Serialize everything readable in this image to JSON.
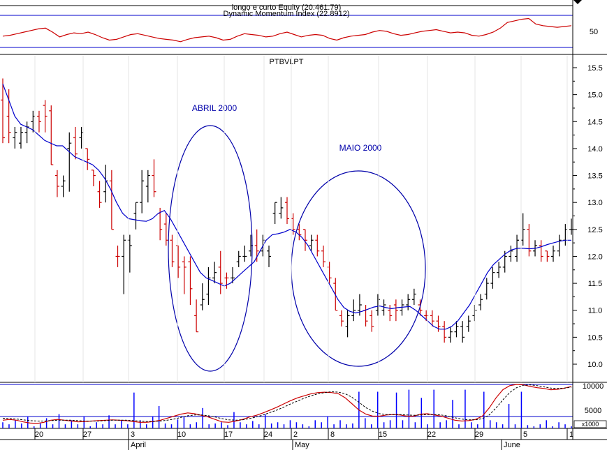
{
  "top_panel": {
    "title_line1": "longo e curto Equity (20.461.79)",
    "title_line2": "Dynamic Momentum Index (22.8912)",
    "tick_label": "50"
  },
  "price_panel": {
    "symbol": "PTBVLPT",
    "annotation_april": "ABRIL 2000",
    "annotation_may": "MAIO 2000",
    "tick_labels": [
      "15.5",
      "15.0",
      "14.5",
      "14.0",
      "13.5",
      "13.0",
      "12.5",
      "12.0",
      "11.5",
      "11.0",
      "10.5",
      "10.0"
    ]
  },
  "volume_panel": {
    "tick_labels": [
      "10000",
      "5000"
    ],
    "multiplier": "x1000"
  },
  "x_axis": {
    "day_labels": [
      "20",
      "27",
      "3",
      "10",
      "17",
      "24",
      "2",
      "8",
      "15",
      "22",
      "29",
      "5",
      "1"
    ],
    "month_labels": [
      "April",
      "May",
      "June"
    ]
  },
  "colors": {
    "up_bar": "#000000",
    "down_bar": "#cc0000",
    "moving_average": "#0000cc",
    "ellipse": "#0000aa",
    "dmi_line": "#cc0000",
    "volume_bar": "#0000ff",
    "grid": "#000000"
  },
  "chart_data": {
    "type": "ohlc",
    "price_axis": {
      "min": 10.0,
      "max": 15.5,
      "step": 0.5
    },
    "bars": [
      {
        "o": 14.9,
        "h": 15.3,
        "l": 14.1,
        "c": 14.2,
        "dir": "down"
      },
      {
        "o": 14.6,
        "h": 15.1,
        "l": 14.1,
        "c": 14.3,
        "dir": "down"
      },
      {
        "o": 14.2,
        "h": 14.4,
        "l": 14.0,
        "c": 14.3,
        "dir": "up"
      },
      {
        "o": 14.1,
        "h": 14.4,
        "l": 14.0,
        "c": 14.3,
        "dir": "up"
      },
      {
        "o": 14.3,
        "h": 14.5,
        "l": 14.1,
        "c": 14.4,
        "dir": "up"
      },
      {
        "o": 14.5,
        "h": 14.7,
        "l": 14.3,
        "c": 14.6,
        "dir": "up"
      },
      {
        "o": 14.6,
        "h": 14.7,
        "l": 14.3,
        "c": 14.5,
        "dir": "down"
      },
      {
        "o": 14.8,
        "h": 14.9,
        "l": 14.3,
        "c": 14.6,
        "dir": "down"
      },
      {
        "o": 14.7,
        "h": 14.8,
        "l": 13.7,
        "c": 13.7,
        "dir": "down"
      },
      {
        "o": 13.5,
        "h": 13.6,
        "l": 13.1,
        "c": 13.3,
        "dir": "down"
      },
      {
        "o": 13.3,
        "h": 13.5,
        "l": 13.1,
        "c": 13.4,
        "dir": "up"
      },
      {
        "o": 14.0,
        "h": 14.3,
        "l": 13.2,
        "c": 14.1,
        "dir": "up"
      },
      {
        "o": 14.2,
        "h": 14.4,
        "l": 13.8,
        "c": 13.9,
        "dir": "down"
      },
      {
        "o": 14.2,
        "h": 14.4,
        "l": 14.0,
        "c": 14.3,
        "dir": "up"
      },
      {
        "o": 14.0,
        "h": 14.0,
        "l": 13.6,
        "c": 13.8,
        "dir": "down"
      },
      {
        "o": 13.6,
        "h": 13.6,
        "l": 13.3,
        "c": 13.5,
        "dir": "down"
      },
      {
        "o": 13.2,
        "h": 13.4,
        "l": 12.9,
        "c": 13.0,
        "dir": "down"
      },
      {
        "o": 13.2,
        "h": 13.7,
        "l": 13.0,
        "c": 13.4,
        "dir": "up"
      },
      {
        "o": 13.4,
        "h": 13.6,
        "l": 12.5,
        "c": 12.5,
        "dir": "down"
      },
      {
        "o": 12.0,
        "h": 12.2,
        "l": 11.8,
        "c": 12.0,
        "dir": "down"
      },
      {
        "o": 12.0,
        "h": 12.4,
        "l": 11.3,
        "c": 12.3,
        "dir": "up"
      },
      {
        "o": 12.3,
        "h": 12.4,
        "l": 11.7,
        "c": 12.2,
        "dir": "up"
      },
      {
        "o": 12.8,
        "h": 13.0,
        "l": 12.5,
        "c": 13.0,
        "dir": "up"
      },
      {
        "o": 13.0,
        "h": 13.6,
        "l": 12.8,
        "c": 13.4,
        "dir": "up"
      },
      {
        "o": 13.3,
        "h": 13.6,
        "l": 13.0,
        "c": 13.5,
        "dir": "up"
      },
      {
        "o": 13.5,
        "h": 13.8,
        "l": 13.1,
        "c": 13.2,
        "dir": "down"
      },
      {
        "o": 12.8,
        "h": 12.9,
        "l": 12.3,
        "c": 12.5,
        "dir": "down"
      },
      {
        "o": 12.6,
        "h": 12.8,
        "l": 12.2,
        "c": 12.3,
        "dir": "down"
      },
      {
        "o": 12.3,
        "h": 12.4,
        "l": 11.8,
        "c": 11.9,
        "dir": "down"
      },
      {
        "o": 12.2,
        "h": 12.2,
        "l": 11.6,
        "c": 11.8,
        "dir": "down"
      },
      {
        "o": 11.9,
        "h": 12.0,
        "l": 11.3,
        "c": 11.8,
        "dir": "down"
      },
      {
        "o": 11.9,
        "h": 12.0,
        "l": 11.1,
        "c": 11.4,
        "dir": "down"
      },
      {
        "o": 10.9,
        "h": 11.2,
        "l": 10.6,
        "c": 10.6,
        "dir": "down"
      },
      {
        "o": 11.1,
        "h": 11.5,
        "l": 11.0,
        "c": 11.2,
        "dir": "up"
      },
      {
        "o": 11.3,
        "h": 11.8,
        "l": 11.1,
        "c": 11.6,
        "dir": "up"
      },
      {
        "o": 11.6,
        "h": 11.9,
        "l": 11.5,
        "c": 11.7,
        "dir": "up"
      },
      {
        "o": 11.8,
        "h": 12.1,
        "l": 11.3,
        "c": 11.5,
        "dir": "down"
      },
      {
        "o": 11.6,
        "h": 11.7,
        "l": 11.4,
        "c": 11.6,
        "dir": "down"
      },
      {
        "o": 11.6,
        "h": 11.8,
        "l": 11.5,
        "c": 11.6,
        "dir": "up"
      },
      {
        "o": 11.9,
        "h": 12.1,
        "l": 11.8,
        "c": 12.0,
        "dir": "up"
      },
      {
        "o": 12.0,
        "h": 12.2,
        "l": 11.9,
        "c": 12.0,
        "dir": "up"
      },
      {
        "o": 12.1,
        "h": 12.4,
        "l": 12.0,
        "c": 12.2,
        "dir": "up"
      },
      {
        "o": 12.2,
        "h": 12.5,
        "l": 11.9,
        "c": 12.1,
        "dir": "down"
      },
      {
        "o": 12.1,
        "h": 12.4,
        "l": 12.0,
        "c": 12.3,
        "dir": "up"
      },
      {
        "o": 12.1,
        "h": 12.2,
        "l": 11.8,
        "c": 12.0,
        "dir": "up"
      },
      {
        "o": 12.8,
        "h": 13.0,
        "l": 12.6,
        "c": 13.0,
        "dir": "up"
      },
      {
        "o": 12.8,
        "h": 13.1,
        "l": 12.7,
        "c": 12.9,
        "dir": "up"
      },
      {
        "o": 13.0,
        "h": 13.1,
        "l": 12.6,
        "c": 12.7,
        "dir": "down"
      },
      {
        "o": 12.7,
        "h": 12.8,
        "l": 12.4,
        "c": 12.5,
        "dir": "down"
      },
      {
        "o": 12.5,
        "h": 12.6,
        "l": 12.3,
        "c": 12.4,
        "dir": "down"
      },
      {
        "o": 12.5,
        "h": 12.5,
        "l": 12.1,
        "c": 12.3,
        "dir": "down"
      },
      {
        "o": 12.2,
        "h": 12.4,
        "l": 12.1,
        "c": 12.3,
        "dir": "up"
      },
      {
        "o": 12.3,
        "h": 12.4,
        "l": 12.0,
        "c": 12.1,
        "dir": "down"
      },
      {
        "o": 12.1,
        "h": 12.2,
        "l": 11.8,
        "c": 11.9,
        "dir": "down"
      },
      {
        "o": 11.8,
        "h": 11.9,
        "l": 11.5,
        "c": 11.6,
        "dir": "down"
      },
      {
        "o": 11.5,
        "h": 11.6,
        "l": 11.0,
        "c": 11.0,
        "dir": "down"
      },
      {
        "o": 10.9,
        "h": 11.0,
        "l": 10.7,
        "c": 10.8,
        "dir": "down"
      },
      {
        "o": 10.7,
        "h": 11.0,
        "l": 10.5,
        "c": 10.9,
        "dir": "up"
      },
      {
        "o": 10.9,
        "h": 11.2,
        "l": 10.8,
        "c": 11.0,
        "dir": "up"
      },
      {
        "o": 11.0,
        "h": 11.3,
        "l": 10.9,
        "c": 11.1,
        "dir": "up"
      },
      {
        "o": 11.0,
        "h": 11.1,
        "l": 10.7,
        "c": 10.8,
        "dir": "down"
      },
      {
        "o": 10.9,
        "h": 11.0,
        "l": 10.6,
        "c": 10.7,
        "dir": "down"
      },
      {
        "o": 11.0,
        "h": 11.3,
        "l": 10.9,
        "c": 11.2,
        "dir": "up"
      },
      {
        "o": 11.0,
        "h": 11.2,
        "l": 10.9,
        "c": 11.1,
        "dir": "up"
      },
      {
        "o": 11.0,
        "h": 11.1,
        "l": 10.8,
        "c": 10.9,
        "dir": "down"
      },
      {
        "o": 11.1,
        "h": 11.2,
        "l": 10.8,
        "c": 11.0,
        "dir": "down"
      },
      {
        "o": 11.0,
        "h": 11.2,
        "l": 10.9,
        "c": 11.1,
        "dir": "up"
      },
      {
        "o": 11.1,
        "h": 11.3,
        "l": 11.0,
        "c": 11.2,
        "dir": "up"
      },
      {
        "o": 11.2,
        "h": 11.4,
        "l": 11.1,
        "c": 11.3,
        "dir": "up"
      },
      {
        "o": 11.1,
        "h": 11.2,
        "l": 10.9,
        "c": 11.0,
        "dir": "down"
      },
      {
        "o": 10.9,
        "h": 11.0,
        "l": 10.8,
        "c": 10.9,
        "dir": "down"
      },
      {
        "o": 10.9,
        "h": 11.0,
        "l": 10.7,
        "c": 10.8,
        "dir": "down"
      },
      {
        "o": 10.8,
        "h": 10.9,
        "l": 10.6,
        "c": 10.7,
        "dir": "down"
      },
      {
        "o": 10.7,
        "h": 10.8,
        "l": 10.4,
        "c": 10.5,
        "dir": "down"
      },
      {
        "o": 10.5,
        "h": 10.7,
        "l": 10.4,
        "c": 10.6,
        "dir": "up"
      },
      {
        "o": 10.6,
        "h": 10.8,
        "l": 10.5,
        "c": 10.7,
        "dir": "up"
      },
      {
        "o": 10.7,
        "h": 10.8,
        "l": 10.4,
        "c": 10.5,
        "dir": "up"
      },
      {
        "o": 10.7,
        "h": 10.9,
        "l": 10.6,
        "c": 10.8,
        "dir": "up"
      },
      {
        "o": 10.9,
        "h": 11.1,
        "l": 10.8,
        "c": 11.0,
        "dir": "up"
      },
      {
        "o": 11.1,
        "h": 11.3,
        "l": 11.0,
        "c": 11.2,
        "dir": "up"
      },
      {
        "o": 11.3,
        "h": 11.6,
        "l": 11.2,
        "c": 11.5,
        "dir": "up"
      },
      {
        "o": 11.5,
        "h": 11.8,
        "l": 11.4,
        "c": 11.7,
        "dir": "up"
      },
      {
        "o": 11.7,
        "h": 11.9,
        "l": 11.6,
        "c": 11.8,
        "dir": "up"
      },
      {
        "o": 11.8,
        "h": 12.1,
        "l": 11.7,
        "c": 12.0,
        "dir": "up"
      },
      {
        "o": 12.0,
        "h": 12.2,
        "l": 11.9,
        "c": 12.1,
        "dir": "up"
      },
      {
        "o": 12.0,
        "h": 12.4,
        "l": 11.9,
        "c": 12.3,
        "dir": "up"
      },
      {
        "o": 12.3,
        "h": 12.8,
        "l": 12.2,
        "c": 12.5,
        "dir": "up"
      },
      {
        "o": 12.5,
        "h": 12.6,
        "l": 12.0,
        "c": 12.1,
        "dir": "down"
      },
      {
        "o": 12.1,
        "h": 12.3,
        "l": 12.0,
        "c": 12.2,
        "dir": "up"
      },
      {
        "o": 12.2,
        "h": 12.3,
        "l": 11.9,
        "c": 12.0,
        "dir": "down"
      },
      {
        "o": 12.1,
        "h": 12.1,
        "l": 11.9,
        "c": 12.0,
        "dir": "down"
      },
      {
        "o": 12.0,
        "h": 12.2,
        "l": 11.9,
        "c": 12.1,
        "dir": "up"
      },
      {
        "o": 12.1,
        "h": 12.4,
        "l": 12.0,
        "c": 12.3,
        "dir": "up"
      },
      {
        "o": 12.3,
        "h": 12.6,
        "l": 12.2,
        "c": 12.5,
        "dir": "up"
      },
      {
        "o": 12.5,
        "h": 12.7,
        "l": 12.4,
        "c": 12.5,
        "dir": "up"
      }
    ],
    "moving_average": [
      15.2,
      14.9,
      14.6,
      14.45,
      14.4,
      14.35,
      14.25,
      14.15,
      14.1,
      14.05,
      14.05,
      13.95,
      13.85,
      13.8,
      13.75,
      13.7,
      13.6,
      13.45,
      13.25,
      13.0,
      12.8,
      12.7,
      12.68,
      12.66,
      12.65,
      12.7,
      12.8,
      12.85,
      12.7,
      12.5,
      12.3,
      12.1,
      11.9,
      11.7,
      11.6,
      11.55,
      11.5,
      11.45,
      11.5,
      11.6,
      11.7,
      11.8,
      11.9,
      12.1,
      12.3,
      12.4,
      12.42,
      12.45,
      12.5,
      12.45,
      12.35,
      12.2,
      12.0,
      11.8,
      11.6,
      11.4,
      11.2,
      11.05,
      10.98,
      10.95,
      10.98,
      11.02,
      11.06,
      11.08,
      11.05,
      11.03,
      11.05,
      11.06,
      11.07,
      11.0,
      10.9,
      10.8,
      10.7,
      10.65,
      10.65,
      10.7,
      10.8,
      10.95,
      11.1,
      11.3,
      11.5,
      11.7,
      11.85,
      11.95,
      12.05,
      12.12,
      12.15,
      12.15,
      12.14,
      12.15,
      12.18,
      12.22,
      12.25,
      12.28,
      12.3,
      12.3
    ],
    "dmi": [
      45,
      46,
      48,
      50,
      52,
      54,
      55,
      50,
      44,
      47,
      49,
      48,
      50,
      47,
      43,
      40,
      41,
      44,
      47,
      48,
      46,
      44,
      42,
      41,
      40,
      38,
      41,
      43,
      44,
      45,
      43,
      40,
      41,
      45,
      48,
      47,
      46,
      44,
      45,
      48,
      50,
      47,
      44,
      46,
      47,
      46,
      42,
      40,
      43,
      45,
      46,
      47,
      50,
      52,
      51,
      48,
      46,
      47,
      49,
      51,
      52,
      53,
      51,
      49,
      50,
      49,
      46,
      45,
      47,
      50,
      55,
      62,
      64,
      66,
      67,
      60,
      58,
      57,
      56,
      57,
      58
    ],
    "volume": [
      1.5,
      1.0,
      2.0,
      1.2,
      2.8,
      0.5,
      1.2,
      2.5,
      1.0,
      3.5,
      1.0,
      2.0,
      1.0,
      3.0,
      0.5,
      1.5,
      1.0,
      3.2,
      1.0,
      2.0,
      1.0,
      8.8,
      2.0,
      1.0,
      3.0,
      5.5,
      1.2,
      1.0,
      2.2,
      2.8,
      1.0,
      1.5,
      5.0,
      1.0,
      1.2,
      1.5,
      0.8,
      4.0,
      1.5,
      1.0,
      1.8,
      1.0,
      3.5,
      1.2,
      1.5,
      1.0,
      2.0,
      1.5,
      1.0,
      0.5,
      2.0,
      1.5,
      3.0,
      1.0,
      2.0,
      1.0,
      1.2,
      9.0,
      2.5,
      1.0,
      9.0,
      1.5,
      2.0,
      8.8,
      2.0,
      9.5,
      1.5,
      7.5,
      1.0,
      9.5,
      1.5,
      2.0,
      7.0,
      1.0,
      9.5,
      1.5,
      1.0,
      9.0,
      2.0,
      1.5,
      1.0,
      6.0,
      1.0,
      9.0,
      0.8,
      0.5,
      1.0,
      2.0,
      0.5,
      1.5,
      1.0,
      0.5
    ],
    "volume_axis": {
      "max": 12000,
      "labeled_ticks": [
        10000,
        5000
      ]
    },
    "volume_ma1": [
      2.0,
      2.2,
      2.0,
      1.6,
      1.3,
      1.2,
      1.5,
      2.0,
      2.2,
      2.0,
      1.8,
      1.6,
      1.7,
      1.8,
      1.9,
      2.0,
      2.1,
      2.0,
      1.9,
      1.7,
      1.5,
      1.5,
      1.7,
      2.0,
      2.5,
      3.0,
      3.5,
      3.8,
      3.6,
      3.2,
      2.8,
      2.2,
      1.6,
      1.5,
      1.8,
      2.2,
      2.8,
      3.2,
      3.8,
      4.5,
      5.2,
      6.0,
      6.8,
      7.5,
      8.0,
      8.5,
      8.8,
      8.9,
      8.8,
      8.5,
      7.5,
      6.0,
      4.5,
      3.5,
      3.0,
      3.0,
      3.3,
      3.4,
      3.3,
      3.0,
      3.0,
      3.5,
      3.6,
      3.3,
      3.0,
      2.5,
      2.0,
      1.8,
      1.9,
      2.2,
      3.0,
      5.0,
      7.5,
      9.5,
      10.5,
      10.8,
      10.7,
      10.3,
      10.0,
      9.8,
      9.5,
      9.6,
      9.9,
      10.3
    ],
    "volume_ma2": [
      2.5,
      2.4,
      2.3,
      2.1,
      1.9,
      1.8,
      1.8,
      1.9,
      2.0,
      2.0,
      2.0,
      1.9,
      1.8,
      1.8,
      1.8,
      1.9,
      2.0,
      2.0,
      2.0,
      1.9,
      1.8,
      1.7,
      1.7,
      1.8,
      2.0,
      2.3,
      2.7,
      3.1,
      3.3,
      3.3,
      3.1,
      2.8,
      2.4,
      2.1,
      2.0,
      2.1,
      2.4,
      2.8,
      3.3,
      3.9,
      4.5,
      5.2,
      6.0,
      6.7,
      7.4,
      8.0,
      8.5,
      8.8,
      9.0,
      8.9,
      8.5,
      7.6,
      6.4,
      5.1,
      4.2,
      3.6,
      3.4,
      3.4,
      3.4,
      3.3,
      3.2,
      3.3,
      3.4,
      3.4,
      3.3,
      3.0,
      2.6,
      2.3,
      2.1,
      2.1,
      2.4,
      3.3,
      5.0,
      7.0,
      8.8,
      10.0,
      10.6,
      10.7,
      10.5,
      10.2,
      9.9,
      9.8,
      9.9,
      10.1
    ]
  }
}
